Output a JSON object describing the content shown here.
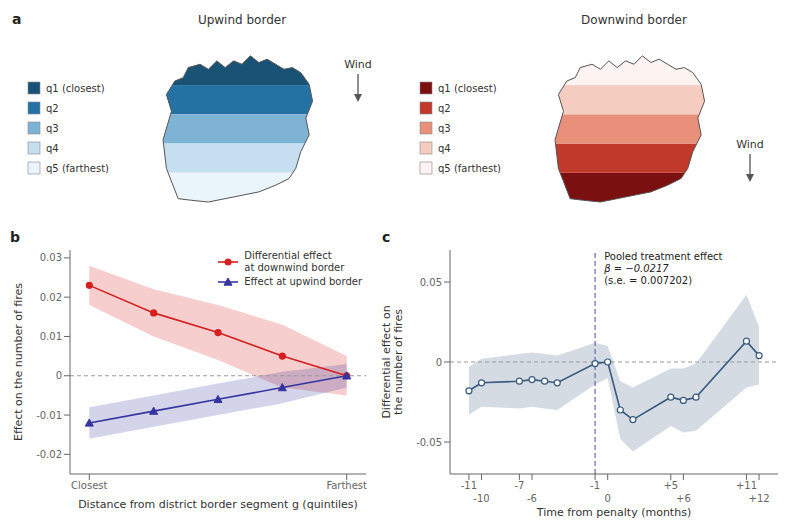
{
  "chart_data": [
    {
      "type": "map",
      "title": "Upwind border",
      "categories": [
        "q1 (closest)",
        "q2",
        "q3",
        "q4",
        "q5 (farthest)"
      ],
      "colors": [
        "#1a5276",
        "#2471a3",
        "#7fb3d3",
        "#c5dff0",
        "#eaf4fb"
      ],
      "annotations": [
        "a",
        "Wind"
      ]
    },
    {
      "type": "map",
      "title": "Downwind border",
      "categories": [
        "q1 (closest)",
        "q2",
        "q3",
        "q4",
        "q5 (farthest)"
      ],
      "colors": [
        "#7b1010",
        "#c0392b",
        "#e8907a",
        "#f5ccc0",
        "#fdf3f0"
      ],
      "annotations": [
        "Wind"
      ]
    },
    {
      "type": "line",
      "x": [
        1,
        2,
        3,
        4,
        5
      ],
      "xlim": [
        0.7,
        5.3
      ],
      "xticks": [
        {
          "value": 1,
          "label": "Closest"
        },
        {
          "value": 5,
          "label": "Farthest"
        }
      ],
      "ylim": [
        -0.025,
        0.032
      ],
      "yticks": [
        -0.02,
        -0.01,
        0,
        0.01,
        0.02,
        0.03
      ],
      "xlabel": "Distance from district border segment g (quintiles)",
      "ylabel": "Effect on the number of fires",
      "hline": 0,
      "grid": false,
      "legend": "upper right",
      "annotations": [
        "b"
      ],
      "series": [
        {
          "name": "Differential effect\nat downwind border",
          "color": "#d42020",
          "marker": "circle",
          "values": [
            0.023,
            0.016,
            0.011,
            0.005,
            0.0
          ],
          "lower": [
            0.018,
            0.01,
            0.004,
            -0.003,
            -0.005
          ],
          "upper": [
            0.028,
            0.022,
            0.018,
            0.013,
            0.005
          ]
        },
        {
          "name": "Effect at upwind border",
          "color": "#3535a0",
          "marker": "triangle",
          "values": [
            -0.012,
            -0.009,
            -0.006,
            -0.003,
            0.0
          ],
          "lower": [
            -0.016,
            -0.013,
            -0.01,
            -0.007,
            -0.003
          ],
          "upper": [
            -0.008,
            -0.005,
            -0.002,
            0.001,
            0.003
          ]
        }
      ]
    },
    {
      "type": "line",
      "x": [
        -11,
        -10,
        -7,
        -6,
        -5,
        -4,
        -1,
        0,
        1,
        2,
        5,
        6,
        7,
        11,
        12
      ],
      "values": [
        -0.018,
        -0.013,
        -0.012,
        -0.011,
        -0.012,
        -0.013,
        -0.001,
        0.0,
        -0.03,
        -0.036,
        -0.022,
        -0.024,
        -0.022,
        0.013,
        0.004
      ],
      "lower": [
        -0.033,
        -0.028,
        -0.029,
        -0.028,
        -0.029,
        -0.03,
        -0.014,
        -0.01,
        -0.048,
        -0.056,
        -0.04,
        -0.044,
        -0.043,
        -0.016,
        -0.014
      ],
      "upper": [
        -0.003,
        0.002,
        0.005,
        0.006,
        0.005,
        0.004,
        0.012,
        0.01,
        -0.012,
        -0.016,
        -0.004,
        -0.004,
        -0.001,
        0.042,
        0.022
      ],
      "color": "#3a5a80",
      "marker": "circle",
      "xlim": [
        -12.5,
        13.5
      ],
      "xticks": [
        -11,
        -10,
        -7,
        -6,
        -1,
        0,
        {
          "value": 5,
          "label": "+5"
        },
        {
          "value": 6,
          "label": "+6"
        },
        {
          "value": 11,
          "label": "+11"
        },
        {
          "value": 12,
          "label": "+12"
        }
      ],
      "ylim": [
        -0.07,
        0.07
      ],
      "yticks": [
        -0.05,
        0,
        0.05
      ],
      "xlabel": "Time from penalty (months)",
      "ylabel": "Differential effect on\nthe number of fires",
      "hline": 0,
      "vline": -1,
      "grid": false,
      "annotations": [
        "c",
        "Pooled treatment effect",
        "β = −0.0217",
        "(s.e. = 0.007202)"
      ]
    }
  ]
}
